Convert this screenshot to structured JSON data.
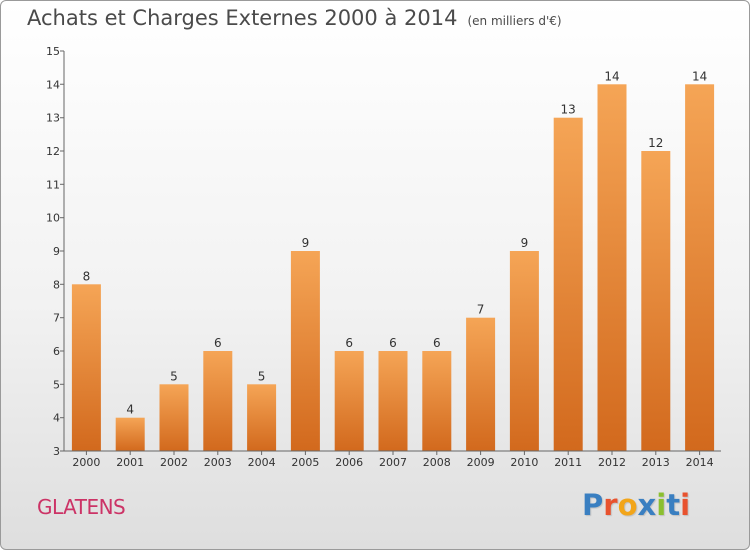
{
  "title": "Achats et Charges Externes 2000 à 2014",
  "subtitle": "(en milliers d'€)",
  "city": "GLATENS",
  "brand": {
    "text": "Proxiti",
    "letter_colors": [
      "#3a7fc1",
      "#e8522e",
      "#f2a51a",
      "#3a7fc1",
      "#8bbf2f",
      "#3a7fc1",
      "#e8522e"
    ]
  },
  "colors": {
    "bar_light": "#f5a556",
    "bar_dark": "#d2691d",
    "city": "#cc3366",
    "title": "#4a4a4a"
  },
  "chart_data": {
    "type": "bar",
    "title": "Achats et Charges Externes 2000 à 2014",
    "subtitle": "(en milliers d'€)",
    "categories": [
      "2000",
      "2001",
      "2002",
      "2003",
      "2004",
      "2005",
      "2006",
      "2007",
      "2008",
      "2009",
      "2010",
      "2011",
      "2012",
      "2013",
      "2014"
    ],
    "values": [
      8,
      4,
      5,
      6,
      5,
      9,
      6,
      6,
      6,
      7,
      9,
      13,
      14,
      12,
      14
    ],
    "ylim": [
      3,
      15
    ],
    "yticks": [
      3,
      4,
      5,
      6,
      7,
      8,
      9,
      10,
      11,
      12,
      13,
      14,
      15
    ],
    "data_labels": true,
    "grid": false,
    "legend": "none"
  }
}
